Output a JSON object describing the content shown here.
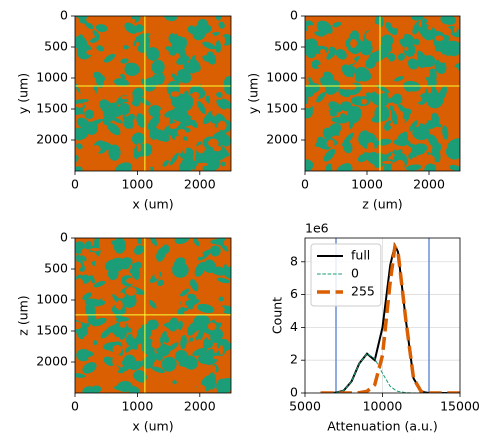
{
  "chart_data": [
    {
      "type": "image",
      "xlabel": "x (um)",
      "ylabel": "y (um)",
      "xlim": [
        0,
        2500
      ],
      "ylim": [
        2500,
        0
      ],
      "xticks": [
        0,
        1000,
        2000
      ],
      "yticks": [
        0,
        500,
        1000,
        1500,
        2000
      ],
      "colors": [
        "#1b9e77",
        "#d95f02"
      ],
      "crosshair_x": 1120,
      "crosshair_y": 1130,
      "crosshair_color": "#ffff33"
    },
    {
      "type": "image",
      "xlabel": "z (um)",
      "ylabel": "y (um)",
      "xlim": [
        0,
        2500
      ],
      "ylim": [
        2500,
        0
      ],
      "xticks": [
        0,
        1000,
        2000
      ],
      "yticks": [
        0,
        500,
        1000,
        1500,
        2000
      ],
      "colors": [
        "#1b9e77",
        "#d95f02"
      ],
      "crosshair_x": 1210,
      "crosshair_y": 1130,
      "crosshair_color": "#ffff33"
    },
    {
      "type": "image",
      "xlabel": "x (um)",
      "ylabel": "z (um)",
      "xlim": [
        0,
        2500
      ],
      "ylim": [
        2500,
        0
      ],
      "xticks": [
        0,
        1000,
        2000
      ],
      "yticks": [
        0,
        500,
        1000,
        1500,
        2000
      ],
      "colors": [
        "#1b9e77",
        "#d95f02"
      ],
      "crosshair_x": 1120,
      "crosshair_y": 1240,
      "crosshair_color": "#ffff33"
    },
    {
      "type": "line",
      "xlabel": "Attenuation (a.u.)",
      "ylabel": "Count",
      "offset_label": "1e6",
      "xlim": [
        5000,
        15000
      ],
      "ylim": [
        0,
        9.45
      ],
      "xticks": [
        5000,
        10000,
        15000
      ],
      "yticks": [
        0,
        2,
        4,
        6,
        8
      ],
      "grid": true,
      "legend": "upper left",
      "vlines": [
        7000,
        13000
      ],
      "vline_color": "#6b8fd6",
      "x": [
        6000,
        6500,
        7000,
        7500,
        8000,
        8500,
        9000,
        9500,
        10000,
        10500,
        10800,
        11000,
        11500,
        12000,
        12500,
        13000,
        14000,
        15000
      ],
      "series": [
        {
          "name": "full",
          "color": "#000000",
          "linestyle": "solid",
          "linewidth": 2,
          "values": [
            0,
            0,
            0.02,
            0.15,
            0.7,
            1.8,
            2.4,
            2.0,
            4.0,
            7.8,
            9.0,
            8.6,
            4.5,
            0.9,
            0.08,
            0,
            0,
            0
          ]
        },
        {
          "name": "0",
          "color": "#1b9e77",
          "linestyle": "dashed",
          "linewidth": 1,
          "values": [
            0,
            0,
            0.02,
            0.15,
            0.7,
            1.8,
            2.4,
            2.1,
            1.2,
            0.4,
            0.2,
            0.1,
            0.02,
            0,
            0,
            0,
            0,
            0
          ]
        },
        {
          "name": "255",
          "color": "#d95f02",
          "linestyle": "dashed",
          "linewidth": 3.5,
          "values": [
            0,
            0,
            0,
            0,
            0,
            0.02,
            0.1,
            0.5,
            2.3,
            6.8,
            8.9,
            8.6,
            4.5,
            0.9,
            0.08,
            0,
            0,
            0
          ]
        }
      ]
    }
  ]
}
